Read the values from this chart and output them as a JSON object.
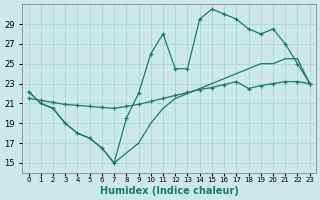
{
  "xlabel": "Humidex (Indice chaleur)",
  "x": [
    0,
    1,
    2,
    3,
    4,
    5,
    6,
    7,
    8,
    9,
    10,
    11,
    12,
    13,
    14,
    15,
    16,
    17,
    18,
    19,
    20,
    21,
    22,
    23
  ],
  "line_upper": [
    22.2,
    21.0,
    20.5,
    19.0,
    18.0,
    17.5,
    16.5,
    15.0,
    19.5,
    22.0,
    26.0,
    28.0,
    24.5,
    24.5,
    29.5,
    30.5,
    30.0,
    29.5,
    28.5,
    28.0,
    28.5,
    27.0,
    25.0,
    23.0
  ],
  "line_lower": [
    22.2,
    21.0,
    20.5,
    19.0,
    18.0,
    17.5,
    16.5,
    15.0,
    16.0,
    17.0,
    19.0,
    20.5,
    21.5,
    22.0,
    22.5,
    23.0,
    23.5,
    24.0,
    24.5,
    25.0,
    25.0,
    25.5,
    25.5,
    23.0
  ],
  "line_mid": [
    21.5,
    21.3,
    21.1,
    20.9,
    20.8,
    20.7,
    20.6,
    20.5,
    20.7,
    20.9,
    21.2,
    21.5,
    21.8,
    22.1,
    22.4,
    22.6,
    22.9,
    23.2,
    22.5,
    22.8,
    23.0,
    23.2,
    23.2,
    23.0
  ],
  "line_color": "#1a7a6e",
  "bg_color": "#cce8e8",
  "grid_color": "#aad0d0",
  "ylim": [
    14,
    31
  ],
  "yticks": [
    15,
    17,
    19,
    21,
    23,
    25,
    27,
    29
  ],
  "xlim": [
    -0.5,
    23.5
  ]
}
